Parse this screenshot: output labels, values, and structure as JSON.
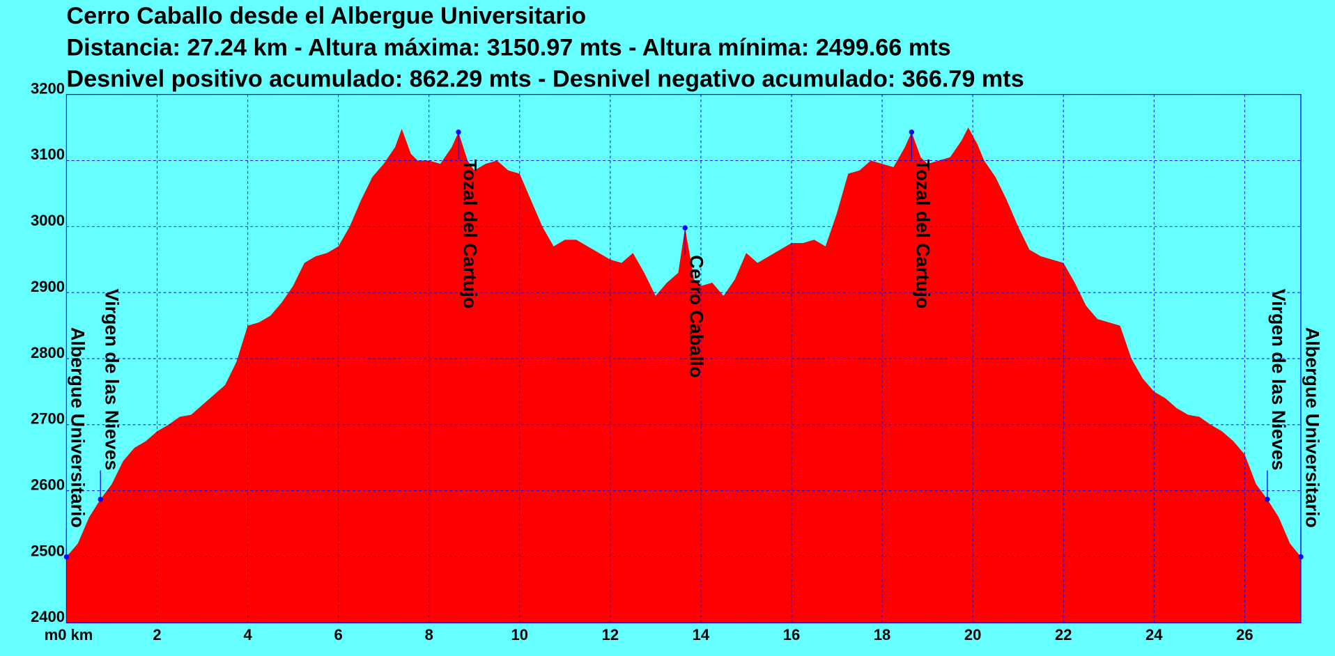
{
  "chart_data": {
    "type": "area",
    "title": "Cerro Caballo desde el Albergue Universitario",
    "subtitle": [
      "Distancia: 27.24 km - Altura máxima: 3150.97 mts - Altura mínima: 2499.66 mts",
      "Desnivel positivo acumulado: 862.29 mts - Desnivel negativo acumulado: 366.79 mts"
    ],
    "y_label": "m",
    "color": "#ff0000",
    "grid": true,
    "xlim": [
      0,
      27.24
    ],
    "ylim": [
      2400,
      3200
    ],
    "xticks": [
      {
        "value": 0,
        "label": "0 km"
      },
      2,
      4,
      6,
      8,
      10,
      12,
      14,
      16,
      18,
      20,
      22,
      24,
      26
    ],
    "yticks": [
      2400,
      2500,
      2600,
      2700,
      2800,
      2900,
      3000,
      3100,
      3200
    ],
    "x": [
      0,
      0.25,
      0.5,
      0.75,
      1,
      1.25,
      1.5,
      1.75,
      2,
      2.25,
      2.5,
      2.75,
      3,
      3.25,
      3.5,
      3.75,
      4,
      4.25,
      4.5,
      4.75,
      5,
      5.25,
      5.5,
      5.75,
      6,
      6.25,
      6.5,
      6.75,
      7,
      7.25,
      7.4,
      7.6,
      7.75,
      8,
      8.25,
      8.5,
      8.65,
      8.85,
      9,
      9.25,
      9.5,
      9.75,
      10,
      10.25,
      10.5,
      10.75,
      11,
      11.25,
      11.5,
      11.75,
      12,
      12.25,
      12.5,
      12.75,
      13,
      13.25,
      13.5,
      13.65,
      13.85,
      14,
      14.25,
      14.5,
      14.75,
      15,
      15.25,
      15.5,
      15.75,
      16,
      16.25,
      16.5,
      16.75,
      17,
      17.25,
      17.5,
      17.75,
      18,
      18.25,
      18.5,
      18.65,
      18.85,
      19,
      19.25,
      19.5,
      19.75,
      19.9,
      20.1,
      20.25,
      20.5,
      20.75,
      21,
      21.25,
      21.5,
      21.75,
      22,
      22.25,
      22.5,
      22.75,
      23,
      23.25,
      23.5,
      23.75,
      24,
      24.25,
      24.5,
      24.75,
      25,
      25.25,
      25.5,
      25.75,
      26,
      26.25,
      26.5,
      26.75,
      27,
      27.24
    ],
    "y": [
      2500,
      2520,
      2560,
      2587,
      2610,
      2645,
      2665,
      2675,
      2690,
      2700,
      2712,
      2715,
      2730,
      2745,
      2760,
      2795,
      2850,
      2855,
      2865,
      2885,
      2910,
      2945,
      2955,
      2960,
      2970,
      3000,
      3040,
      3075,
      3095,
      3120,
      3148,
      3110,
      3100,
      3100,
      3095,
      3120,
      3143,
      3100,
      3085,
      3095,
      3100,
      3085,
      3080,
      3040,
      3000,
      2970,
      2980,
      2980,
      2970,
      2960,
      2950,
      2945,
      2960,
      2930,
      2895,
      2915,
      2930,
      2998,
      2920,
      2910,
      2915,
      2895,
      2920,
      2960,
      2945,
      2955,
      2965,
      2975,
      2975,
      2980,
      2970,
      3020,
      3080,
      3085,
      3100,
      3095,
      3090,
      3120,
      3143,
      3105,
      3095,
      3100,
      3105,
      3130,
      3150,
      3125,
      3100,
      3075,
      3040,
      3000,
      2965,
      2955,
      2950,
      2945,
      2915,
      2880,
      2860,
      2855,
      2850,
      2800,
      2770,
      2750,
      2740,
      2725,
      2715,
      2712,
      2700,
      2690,
      2675,
      2655,
      2610,
      2587,
      2560,
      2520,
      2500
    ],
    "waypoints": [
      {
        "x": 0,
        "y": 2500,
        "label": "Albergue Universitario"
      },
      {
        "x": 0.75,
        "y": 2587,
        "label": "Virgen de las Nieves"
      },
      {
        "x": 8.65,
        "y": 3143,
        "label": "Tozal del Cartujo"
      },
      {
        "x": 13.65,
        "y": 2998,
        "label": "Cerro Caballo"
      },
      {
        "x": 18.65,
        "y": 3143,
        "label": "Tozal del Cartujo"
      },
      {
        "x": 26.5,
        "y": 2587,
        "label": "Virgen de las Nieves"
      },
      {
        "x": 27.24,
        "y": 2500,
        "label": "Albergue Universitario"
      }
    ]
  }
}
